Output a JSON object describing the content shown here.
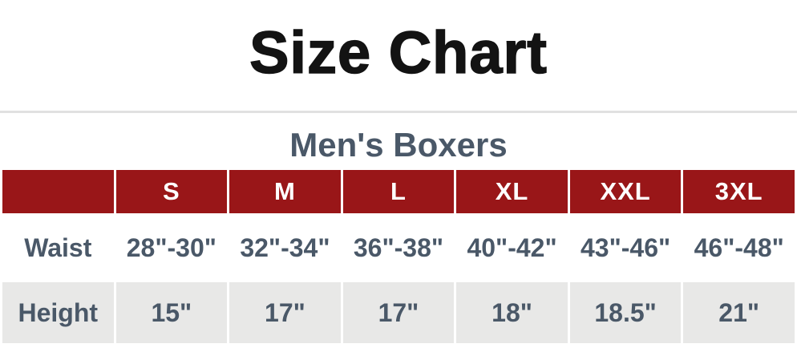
{
  "page": {
    "title": "Size Chart",
    "subtitle": "Men's Boxers"
  },
  "colors": {
    "header_bg": "#991618",
    "header_text": "#ffffff",
    "body_text": "#4a5868",
    "alt_row_bg": "#e8e8e7",
    "divider": "#e1e1e1",
    "title_text": "#131313"
  },
  "table": {
    "corner_label": "",
    "columns": [
      "S",
      "M",
      "L",
      "XL",
      "XXL",
      "3XL"
    ],
    "rows": [
      {
        "label": "Waist",
        "values": [
          "28\"-30\"",
          "32\"-34\"",
          "36\"-38\"",
          "40\"-42\"",
          "43\"-46\"",
          "46\"-48\""
        ]
      },
      {
        "label": "Height",
        "values": [
          "15\"",
          "17\"",
          "17\"",
          "18\"",
          "18.5\"",
          "21\""
        ]
      }
    ]
  },
  "chart_data": {
    "type": "table",
    "title": "Size Chart",
    "subtitle": "Men's Boxers",
    "columns": [
      "",
      "S",
      "M",
      "L",
      "XL",
      "XXL",
      "3XL"
    ],
    "rows": [
      [
        "Waist",
        "28\"-30\"",
        "32\"-34\"",
        "36\"-38\"",
        "40\"-42\"",
        "43\"-46\"",
        "46\"-48\""
      ],
      [
        "Height",
        "15\"",
        "17\"",
        "17\"",
        "18\"",
        "18.5\"",
        "21\""
      ]
    ]
  }
}
